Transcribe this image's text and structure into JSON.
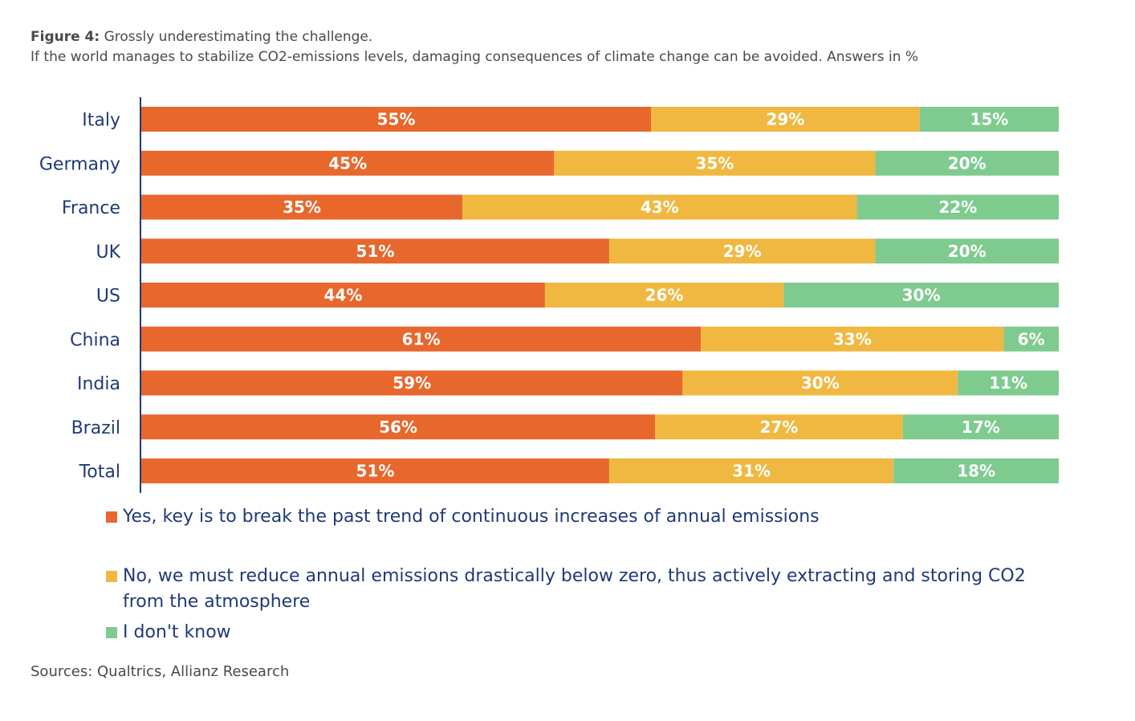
{
  "figure": {
    "label": "Figure 4:",
    "title": "Grossly underestimating the challenge.",
    "subtitle": "If the world manages to stabilize CO2-emissions levels, damaging consequences of climate change can be avoided. Answers in %",
    "sources": "Sources: Qualtrics, Allianz Research"
  },
  "chart_data": {
    "type": "bar",
    "orientation": "horizontal",
    "stacked": true,
    "categories": [
      "Italy",
      "Germany",
      "France",
      "UK",
      "US",
      "China",
      "India",
      "Brazil",
      "Total"
    ],
    "series": [
      {
        "name": "Yes, key is to break the past trend of continuous increases of annual emissions",
        "color": "#e8672d",
        "values": [
          55,
          45,
          35,
          51,
          44,
          61,
          59,
          56,
          51
        ]
      },
      {
        "name": "No, we must reduce annual emissions drastically below zero, thus actively extracting and storing CO2 from the atmosphere",
        "color": "#f0b840",
        "values": [
          29,
          35,
          43,
          29,
          26,
          33,
          30,
          27,
          31
        ]
      },
      {
        "name": "I don't know",
        "color": "#7fcb8f",
        "values": [
          15,
          20,
          22,
          20,
          30,
          6,
          11,
          17,
          18
        ]
      }
    ],
    "value_suffix": "%",
    "grid": false,
    "legend_position": "bottom"
  }
}
